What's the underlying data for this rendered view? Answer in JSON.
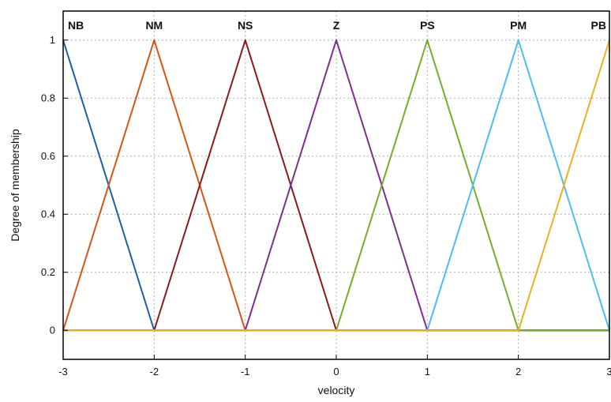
{
  "chart_data": {
    "type": "line",
    "title": "",
    "xlabel": "velocity",
    "ylabel": "Degree of membership",
    "xlim": [
      -3,
      3
    ],
    "ylim": [
      -0.1,
      1.1
    ],
    "xticks": [
      "-3",
      "-2",
      "-1",
      "0",
      "1",
      "2",
      "3"
    ],
    "yticks": [
      "0",
      "0.2",
      "0.4",
      "0.6",
      "0.8",
      "1"
    ],
    "grid": true,
    "legend": "none",
    "series": [
      {
        "name": "NB",
        "color": "#1f5f9e",
        "x": [
          -3,
          -2,
          3
        ],
        "y": [
          1,
          0,
          0
        ]
      },
      {
        "name": "NM",
        "color": "#d95319",
        "x": [
          -3,
          -2,
          -1,
          3
        ],
        "y": [
          0,
          1,
          0,
          0
        ]
      },
      {
        "name": "NS",
        "color": "#8b1a1a",
        "x": [
          -3,
          -2,
          -1,
          0,
          3
        ],
        "y": [
          0,
          0,
          1,
          0,
          0
        ]
      },
      {
        "name": "Z",
        "color": "#7e2f8e",
        "x": [
          -3,
          -1,
          0,
          1,
          3
        ],
        "y": [
          0,
          0,
          1,
          0,
          0
        ]
      },
      {
        "name": "PS",
        "color": "#77ac30",
        "x": [
          -3,
          0,
          1,
          2,
          3
        ],
        "y": [
          0,
          0,
          1,
          0,
          0
        ]
      },
      {
        "name": "PM",
        "color": "#4dbeee",
        "x": [
          -3,
          1,
          2,
          3
        ],
        "y": [
          0,
          0,
          1,
          0
        ]
      },
      {
        "name": "PB",
        "color": "#edb120",
        "x": [
          -3,
          2,
          3
        ],
        "y": [
          0,
          0,
          1
        ]
      }
    ]
  }
}
